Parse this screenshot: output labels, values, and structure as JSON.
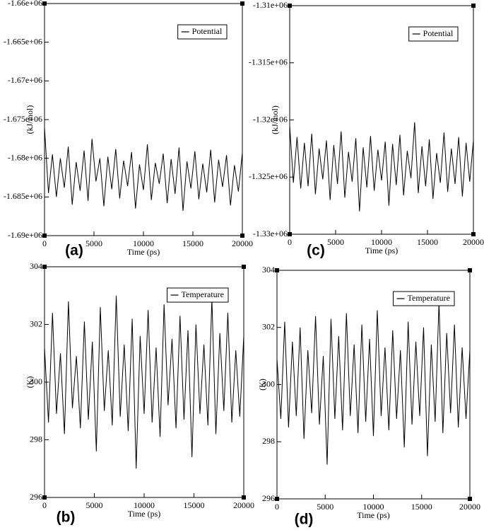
{
  "chart_data": [
    {
      "type": "line",
      "panel_label": "(a)",
      "xlabel": "Time (ps)",
      "ylabel": "(kJ/mol)",
      "legend": "upper right",
      "x": [
        0,
        400,
        800,
        1200,
        1600,
        2000,
        2400,
        2800,
        3200,
        3600,
        4000,
        4400,
        4800,
        5200,
        5600,
        6000,
        6400,
        6800,
        7200,
        7600,
        8000,
        8400,
        8800,
        9200,
        9600,
        10000,
        10400,
        10800,
        11200,
        11600,
        12000,
        12400,
        12800,
        13200,
        13600,
        14000,
        14400,
        14800,
        15200,
        15600,
        16000,
        16400,
        16800,
        17200,
        17600,
        18000,
        18400,
        18800,
        19200,
        19600,
        20000
      ],
      "series": [
        {
          "name": "Potential",
          "color": "#000000",
          "values": [
            -1676000,
            -1684500,
            -1679500,
            -1685000,
            -1680000,
            -1683800,
            -1678500,
            -1686000,
            -1680500,
            -1684200,
            -1679000,
            -1685500,
            -1677500,
            -1683000,
            -1680000,
            -1686200,
            -1679800,
            -1684000,
            -1678800,
            -1685200,
            -1680300,
            -1683600,
            -1679200,
            -1686500,
            -1680800,
            -1684100,
            -1678200,
            -1685400,
            -1680600,
            -1683300,
            -1679400,
            -1685800,
            -1680100,
            -1684600,
            -1678600,
            -1686800,
            -1680400,
            -1683900,
            -1679100,
            -1685300,
            -1680700,
            -1684400,
            -1678900,
            -1685700,
            -1680200,
            -1683700,
            -1679600,
            -1686100,
            -1680900,
            -1684300,
            -1679300
          ]
        }
      ],
      "xlim": [
        0,
        20000
      ],
      "xticks": [
        0,
        5000,
        10000,
        15000,
        20000
      ],
      "ylim": [
        -1690000,
        -1660000
      ],
      "yticks": [
        {
          "value": -1690000,
          "label": "-1.69e+06"
        },
        {
          "value": -1685000,
          "label": "-1.685e+06"
        },
        {
          "value": -1680000,
          "label": "-1.68e+06"
        },
        {
          "value": -1675000,
          "label": "-1.675e+06"
        },
        {
          "value": -1670000,
          "label": "-1.67e+06"
        },
        {
          "value": -1665000,
          "label": "-1.665e+06"
        },
        {
          "value": -1660000,
          "label": "-1.66e+06"
        }
      ]
    },
    {
      "type": "line",
      "panel_label": "(c)",
      "xlabel": "Time (ps)",
      "ylabel": "(kJ/mol)",
      "legend": "upper right",
      "x": [
        0,
        400,
        800,
        1200,
        1600,
        2000,
        2400,
        2800,
        3200,
        3600,
        4000,
        4400,
        4800,
        5200,
        5600,
        6000,
        6400,
        6800,
        7200,
        7600,
        8000,
        8400,
        8800,
        9200,
        9600,
        10000,
        10400,
        10800,
        11200,
        11600,
        12000,
        12400,
        12800,
        13200,
        13600,
        14000,
        14400,
        14800,
        15200,
        15600,
        16000,
        16400,
        16800,
        17200,
        17600,
        18000,
        18400,
        18800,
        19200,
        19600,
        20000
      ],
      "series": [
        {
          "name": "Potential",
          "color": "#000000",
          "values": [
            -1320500,
            -1325500,
            -1321500,
            -1326000,
            -1322000,
            -1325800,
            -1321200,
            -1326500,
            -1322500,
            -1325200,
            -1321800,
            -1327000,
            -1322200,
            -1325600,
            -1321000,
            -1326800,
            -1322800,
            -1325400,
            -1321600,
            -1328000,
            -1322400,
            -1325900,
            -1321400,
            -1326200,
            -1322600,
            -1325300,
            -1321900,
            -1327500,
            -1322100,
            -1325700,
            -1321300,
            -1326600,
            -1322700,
            -1325100,
            -1320200,
            -1326400,
            -1322300,
            -1325800,
            -1321700,
            -1326900,
            -1322900,
            -1325500,
            -1321100,
            -1326300,
            -1322500,
            -1325600,
            -1321500,
            -1326700,
            -1322000,
            -1325400,
            -1321800
          ]
        }
      ],
      "xlim": [
        0,
        20000
      ],
      "xticks": [
        0,
        5000,
        10000,
        15000,
        20000
      ],
      "ylim": [
        -1330000,
        -1310000
      ],
      "yticks": [
        {
          "value": -1330000,
          "label": "-1.33e+06"
        },
        {
          "value": -1325000,
          "label": "-1.325e+06"
        },
        {
          "value": -1320000,
          "label": "-1.32e+06"
        },
        {
          "value": -1315000,
          "label": "-1.315e+06"
        },
        {
          "value": -1310000,
          "label": "-1.31e+06"
        }
      ]
    },
    {
      "type": "line",
      "panel_label": "(b)",
      "xlabel": "Time (ps)",
      "ylabel": "(K)",
      "legend": "upper right",
      "x": [
        0,
        400,
        800,
        1200,
        1600,
        2000,
        2400,
        2800,
        3200,
        3600,
        4000,
        4400,
        4800,
        5200,
        5600,
        6000,
        6400,
        6800,
        7200,
        7600,
        8000,
        8400,
        8800,
        9200,
        9600,
        10000,
        10400,
        10800,
        11200,
        11600,
        12000,
        12400,
        12800,
        13200,
        13600,
        14000,
        14400,
        14800,
        15200,
        15600,
        16000,
        16400,
        16800,
        17200,
        17600,
        18000,
        18400,
        18800,
        19200,
        19600,
        20000
      ],
      "series": [
        {
          "name": "Temperature",
          "color": "#000000",
          "values": [
            301.2,
            298.6,
            302.4,
            298.9,
            301.0,
            298.2,
            302.8,
            299.1,
            300.9,
            298.4,
            302.1,
            298.7,
            301.4,
            297.6,
            302.6,
            299.0,
            301.1,
            298.5,
            303.0,
            298.8,
            301.3,
            298.3,
            302.2,
            297.0,
            301.6,
            298.9,
            302.5,
            298.6,
            301.2,
            298.1,
            302.7,
            299.2,
            301.5,
            298.4,
            302.3,
            298.7,
            301.8,
            297.4,
            302.0,
            298.9,
            301.3,
            298.5,
            302.9,
            298.2,
            301.7,
            299.0,
            302.4,
            298.6,
            301.1,
            298.8,
            301.6
          ]
        }
      ],
      "xlim": [
        0,
        20000
      ],
      "xticks": [
        0,
        5000,
        10000,
        15000,
        20000
      ],
      "ylim": [
        296,
        304
      ],
      "yticks": [
        296,
        298,
        300,
        302,
        304
      ]
    },
    {
      "type": "line",
      "panel_label": "(d)",
      "xlabel": "Time (ps)",
      "ylabel": "(K)",
      "legend": "upper right",
      "x": [
        0,
        400,
        800,
        1200,
        1600,
        2000,
        2400,
        2800,
        3200,
        3600,
        4000,
        4400,
        4800,
        5200,
        5600,
        6000,
        6400,
        6800,
        7200,
        7600,
        8000,
        8400,
        8800,
        9200,
        9600,
        10000,
        10400,
        10800,
        11200,
        11600,
        12000,
        12400,
        12800,
        13200,
        13600,
        14000,
        14400,
        14800,
        15200,
        15600,
        16000,
        16400,
        16800,
        17200,
        17600,
        18000,
        18400,
        18800,
        19200,
        19600,
        20000
      ],
      "series": [
        {
          "name": "Temperature",
          "color": "#000000",
          "values": [
            300.9,
            298.8,
            302.2,
            298.5,
            301.5,
            298.9,
            302.0,
            298.1,
            301.2,
            299.0,
            302.4,
            298.6,
            301.0,
            297.2,
            302.3,
            298.8,
            301.7,
            298.4,
            302.5,
            298.9,
            301.4,
            298.3,
            302.1,
            298.7,
            301.6,
            298.2,
            302.6,
            298.9,
            301.3,
            298.4,
            301.9,
            298.8,
            301.2,
            297.8,
            302.2,
            298.6,
            301.5,
            298.9,
            302.0,
            297.5,
            301.4,
            298.7,
            302.9,
            298.3,
            301.8,
            299.0,
            302.1,
            298.5,
            301.3,
            298.8,
            301.2
          ]
        }
      ],
      "xlim": [
        0,
        20000
      ],
      "xticks": [
        0,
        5000,
        10000,
        15000,
        20000
      ],
      "ylim": [
        296,
        304
      ],
      "yticks": [
        296,
        298,
        300,
        302,
        304
      ]
    }
  ]
}
